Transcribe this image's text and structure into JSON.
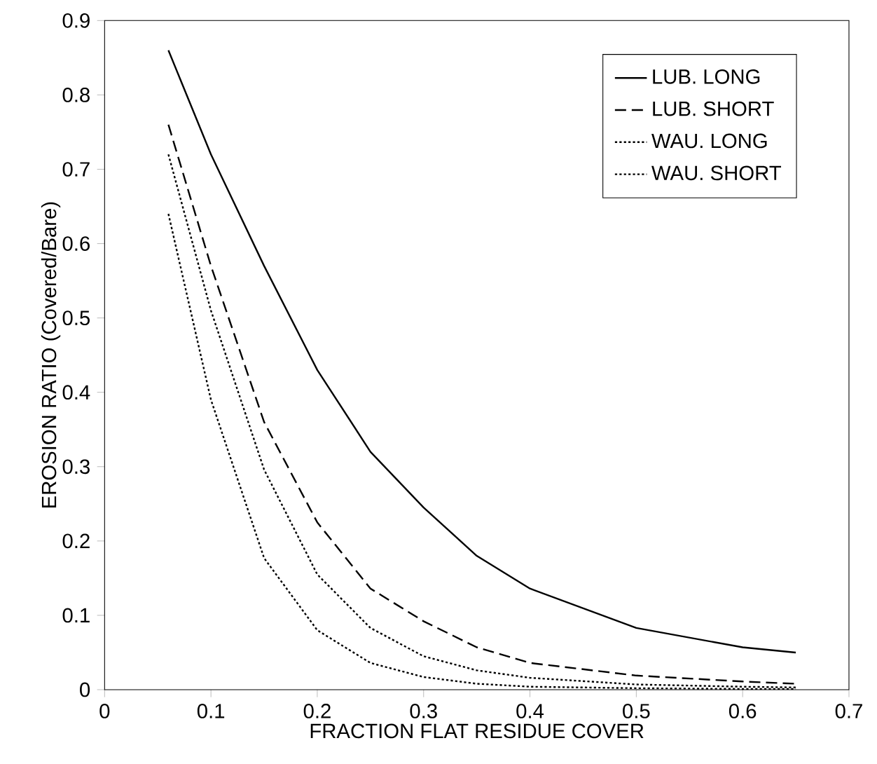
{
  "chart_data": {
    "type": "line",
    "xlabel": "FRACTION FLAT RESIDUE COVER",
    "ylabel": "EROSION RATIO (Covered/Bare)",
    "x": [
      0.06,
      0.1,
      0.15,
      0.2,
      0.25,
      0.3,
      0.35,
      0.4,
      0.5,
      0.6,
      0.65
    ],
    "series": [
      {
        "name": "LUB. LONG",
        "color": "#000000",
        "line_style": "solid",
        "values": [
          0.86,
          0.72,
          0.57,
          0.43,
          0.32,
          0.245,
          0.18,
          0.136,
          0.083,
          0.057,
          0.05
        ]
      },
      {
        "name": "LUB. SHORT",
        "color": "#000000",
        "line_style": "dashed",
        "values": [
          0.76,
          0.57,
          0.36,
          0.225,
          0.136,
          0.092,
          0.057,
          0.036,
          0.019,
          0.011,
          0.008
        ]
      },
      {
        "name": "WAU. LONG",
        "color": "#000000",
        "line_style": "dotted",
        "values": [
          0.72,
          0.51,
          0.296,
          0.155,
          0.083,
          0.045,
          0.026,
          0.016,
          0.007,
          0.004,
          0.003
        ]
      },
      {
        "name": "WAU. SHORT",
        "color": "#000000",
        "line_style": "dotted",
        "values": [
          0.64,
          0.39,
          0.177,
          0.08,
          0.036,
          0.017,
          0.008,
          0.004,
          0.002,
          0.001,
          0.001
        ]
      }
    ],
    "xlim": [
      0,
      0.7
    ],
    "xticks": [
      0,
      0.1,
      0.2,
      0.3,
      0.4,
      0.5,
      0.6,
      0.7
    ],
    "ylim": [
      0,
      0.9
    ],
    "yticks": [
      0,
      0.1,
      0.2,
      0.3,
      0.4,
      0.5,
      0.6,
      0.7,
      0.8,
      0.9
    ],
    "legend": "top right",
    "marker": "none",
    "grid": false
  }
}
